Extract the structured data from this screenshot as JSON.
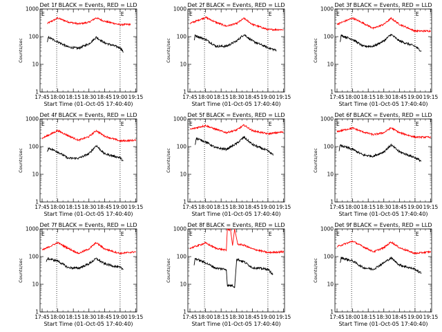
{
  "chart_data": {
    "type": "line",
    "yscale": "log",
    "ylim": [
      1,
      1000
    ],
    "y_ticks": [
      "1",
      "10",
      "100",
      "1000"
    ],
    "x_ticks": [
      "17:45",
      "18:00",
      "18:15",
      "18:30",
      "18:45",
      "19:00",
      "19:15"
    ],
    "xlabel": "Start Time (01-Oct-05 17:40:40)",
    "ylabel": "Counts/sec",
    "marker_label": "E",
    "colors": {
      "events": "#000000",
      "lld": "#ff0000"
    },
    "grid": false,
    "panels": [
      {
        "title": "Det 1f BLACK = Events, RED = LLD",
        "lld": [
          {
            "t": "17:50",
            "v": 300
          },
          {
            "t": "18:00",
            "v": 470
          },
          {
            "t": "18:10",
            "v": 340
          },
          {
            "t": "18:20",
            "v": 290
          },
          {
            "t": "18:30",
            "v": 330
          },
          {
            "t": "18:37",
            "v": 480
          },
          {
            "t": "18:45",
            "v": 360
          },
          {
            "t": "19:00",
            "v": 270
          },
          {
            "t": "19:10",
            "v": 280
          }
        ],
        "events": [
          {
            "t": "17:50",
            "v": 60
          },
          {
            "t": "17:51",
            "v": 95
          },
          {
            "t": "18:00",
            "v": 65
          },
          {
            "t": "18:10",
            "v": 42
          },
          {
            "t": "18:20",
            "v": 38
          },
          {
            "t": "18:30",
            "v": 55
          },
          {
            "t": "18:37",
            "v": 95
          },
          {
            "t": "18:45",
            "v": 60
          },
          {
            "t": "19:00",
            "v": 40
          },
          {
            "t": "19:03",
            "v": 28
          }
        ]
      },
      {
        "title": "Det 2f BLACK = Events, RED = LLD",
        "lld": [
          {
            "t": "17:45",
            "v": 300
          },
          {
            "t": "18:00",
            "v": 500
          },
          {
            "t": "18:10",
            "v": 330
          },
          {
            "t": "18:20",
            "v": 240
          },
          {
            "t": "18:30",
            "v": 300
          },
          {
            "t": "18:37",
            "v": 460
          },
          {
            "t": "18:45",
            "v": 280
          },
          {
            "t": "19:00",
            "v": 180
          },
          {
            "t": "19:15",
            "v": 180
          }
        ],
        "events": [
          {
            "t": "17:49",
            "v": 70
          },
          {
            "t": "17:50",
            "v": 110
          },
          {
            "t": "18:00",
            "v": 80
          },
          {
            "t": "18:10",
            "v": 45
          },
          {
            "t": "18:20",
            "v": 45
          },
          {
            "t": "18:30",
            "v": 70
          },
          {
            "t": "18:37",
            "v": 120
          },
          {
            "t": "18:45",
            "v": 70
          },
          {
            "t": "19:00",
            "v": 40
          },
          {
            "t": "19:08",
            "v": 32
          }
        ]
      },
      {
        "title": "Det 3f BLACK = Events, RED = LLD",
        "lld": [
          {
            "t": "17:45",
            "v": 280
          },
          {
            "t": "18:00",
            "v": 470
          },
          {
            "t": "18:10",
            "v": 310
          },
          {
            "t": "18:20",
            "v": 200
          },
          {
            "t": "18:30",
            "v": 280
          },
          {
            "t": "18:37",
            "v": 460
          },
          {
            "t": "18:45",
            "v": 280
          },
          {
            "t": "19:00",
            "v": 160
          },
          {
            "t": "19:15",
            "v": 160
          }
        ],
        "events": [
          {
            "t": "17:48",
            "v": 70
          },
          {
            "t": "17:49",
            "v": 110
          },
          {
            "t": "18:00",
            "v": 80
          },
          {
            "t": "18:10",
            "v": 45
          },
          {
            "t": "18:20",
            "v": 45
          },
          {
            "t": "18:30",
            "v": 70
          },
          {
            "t": "18:37",
            "v": 120
          },
          {
            "t": "18:45",
            "v": 70
          },
          {
            "t": "19:00",
            "v": 45
          },
          {
            "t": "19:06",
            "v": 30
          }
        ]
      },
      {
        "title": "Det 4f BLACK = Events, RED = LLD",
        "lld": [
          {
            "t": "17:45",
            "v": 200
          },
          {
            "t": "18:00",
            "v": 380
          },
          {
            "t": "18:10",
            "v": 250
          },
          {
            "t": "18:20",
            "v": 170
          },
          {
            "t": "18:30",
            "v": 230
          },
          {
            "t": "18:37",
            "v": 380
          },
          {
            "t": "18:45",
            "v": 240
          },
          {
            "t": "19:00",
            "v": 160
          },
          {
            "t": "19:15",
            "v": 170
          }
        ],
        "events": [
          {
            "t": "17:50",
            "v": 60
          },
          {
            "t": "17:51",
            "v": 90
          },
          {
            "t": "18:00",
            "v": 65
          },
          {
            "t": "18:10",
            "v": 38
          },
          {
            "t": "18:20",
            "v": 38
          },
          {
            "t": "18:30",
            "v": 55
          },
          {
            "t": "18:37",
            "v": 110
          },
          {
            "t": "18:45",
            "v": 55
          },
          {
            "t": "19:00",
            "v": 40
          },
          {
            "t": "19:03",
            "v": 30
          }
        ]
      },
      {
        "title": "Det 5f BLACK = Events, RED = LLD",
        "lld": [
          {
            "t": "17:45",
            "v": 420
          },
          {
            "t": "18:00",
            "v": 580
          },
          {
            "t": "18:10",
            "v": 420
          },
          {
            "t": "18:20",
            "v": 320
          },
          {
            "t": "18:30",
            "v": 400
          },
          {
            "t": "18:37",
            "v": 600
          },
          {
            "t": "18:45",
            "v": 380
          },
          {
            "t": "19:00",
            "v": 290
          },
          {
            "t": "19:15",
            "v": 340
          }
        ],
        "events": [
          {
            "t": "17:50",
            "v": 120
          },
          {
            "t": "17:51",
            "v": 200
          },
          {
            "t": "18:00",
            "v": 150
          },
          {
            "t": "18:10",
            "v": 90
          },
          {
            "t": "18:20",
            "v": 80
          },
          {
            "t": "18:30",
            "v": 130
          },
          {
            "t": "18:37",
            "v": 220
          },
          {
            "t": "18:45",
            "v": 120
          },
          {
            "t": "19:00",
            "v": 70
          },
          {
            "t": "19:05",
            "v": 50
          }
        ]
      },
      {
        "title": "Det 6f BLACK = Events, RED = LLD",
        "lld": [
          {
            "t": "17:45",
            "v": 350
          },
          {
            "t": "18:00",
            "v": 470
          },
          {
            "t": "18:10",
            "v": 340
          },
          {
            "t": "18:20",
            "v": 270
          },
          {
            "t": "18:30",
            "v": 320
          },
          {
            "t": "18:37",
            "v": 480
          },
          {
            "t": "18:45",
            "v": 320
          },
          {
            "t": "19:00",
            "v": 220
          },
          {
            "t": "19:15",
            "v": 220
          }
        ],
        "events": [
          {
            "t": "17:47",
            "v": 75
          },
          {
            "t": "17:48",
            "v": 110
          },
          {
            "t": "18:00",
            "v": 80
          },
          {
            "t": "18:10",
            "v": 50
          },
          {
            "t": "18:20",
            "v": 45
          },
          {
            "t": "18:30",
            "v": 65
          },
          {
            "t": "18:37",
            "v": 115
          },
          {
            "t": "18:45",
            "v": 65
          },
          {
            "t": "19:00",
            "v": 40
          },
          {
            "t": "19:06",
            "v": 30
          }
        ]
      },
      {
        "title": "Det 7f BLACK = Events, RED = LLD",
        "lld": [
          {
            "t": "17:45",
            "v": 170
          },
          {
            "t": "18:00",
            "v": 320
          },
          {
            "t": "18:10",
            "v": 200
          },
          {
            "t": "18:20",
            "v": 130
          },
          {
            "t": "18:30",
            "v": 190
          },
          {
            "t": "18:37",
            "v": 320
          },
          {
            "t": "18:45",
            "v": 190
          },
          {
            "t": "19:00",
            "v": 130
          },
          {
            "t": "19:15",
            "v": 150
          }
        ],
        "events": [
          {
            "t": "17:49",
            "v": 60
          },
          {
            "t": "17:50",
            "v": 85
          },
          {
            "t": "18:00",
            "v": 70
          },
          {
            "t": "18:10",
            "v": 40
          },
          {
            "t": "18:20",
            "v": 38
          },
          {
            "t": "18:30",
            "v": 55
          },
          {
            "t": "18:37",
            "v": 85
          },
          {
            "t": "18:45",
            "v": 55
          },
          {
            "t": "19:00",
            "v": 40
          },
          {
            "t": "19:03",
            "v": 35
          }
        ]
      },
      {
        "title": "Det 8f BLACK = Events, RED = LLD",
        "lld": [
          {
            "t": "17:45",
            "v": 200
          },
          {
            "t": "18:00",
            "v": 310
          },
          {
            "t": "18:10",
            "v": 200
          },
          {
            "t": "18:20",
            "v": 170
          },
          {
            "t": "18:21",
            "v": 1000
          },
          {
            "t": "18:23",
            "v": 900
          },
          {
            "t": "18:24",
            "v": 1000
          },
          {
            "t": "18:26",
            "v": 250
          },
          {
            "t": "18:28",
            "v": 1000
          },
          {
            "t": "18:31",
            "v": 280
          },
          {
            "t": "18:37",
            "v": 260
          },
          {
            "t": "18:45",
            "v": 190
          },
          {
            "t": "19:00",
            "v": 140
          },
          {
            "t": "19:15",
            "v": 150
          }
        ],
        "events": [
          {
            "t": "17:49",
            "v": 50
          },
          {
            "t": "17:50",
            "v": 85
          },
          {
            "t": "18:00",
            "v": 60
          },
          {
            "t": "18:10",
            "v": 38
          },
          {
            "t": "18:20",
            "v": 35
          },
          {
            "t": "18:21",
            "v": 9
          },
          {
            "t": "18:26",
            "v": 9
          },
          {
            "t": "18:28",
            "v": 8
          },
          {
            "t": "18:30",
            "v": 80
          },
          {
            "t": "18:37",
            "v": 65
          },
          {
            "t": "18:45",
            "v": 40
          },
          {
            "t": "19:00",
            "v": 35
          },
          {
            "t": "19:05",
            "v": 22
          }
        ]
      },
      {
        "title": "Det 9f BLACK = Events, RED = LLD",
        "lld": [
          {
            "t": "17:45",
            "v": 230
          },
          {
            "t": "18:00",
            "v": 360
          },
          {
            "t": "18:10",
            "v": 230
          },
          {
            "t": "18:20",
            "v": 150
          },
          {
            "t": "18:30",
            "v": 210
          },
          {
            "t": "18:37",
            "v": 340
          },
          {
            "t": "18:45",
            "v": 210
          },
          {
            "t": "19:00",
            "v": 130
          },
          {
            "t": "19:15",
            "v": 150
          }
        ],
        "events": [
          {
            "t": "17:48",
            "v": 60
          },
          {
            "t": "17:49",
            "v": 90
          },
          {
            "t": "18:00",
            "v": 70
          },
          {
            "t": "18:10",
            "v": 40
          },
          {
            "t": "18:20",
            "v": 35
          },
          {
            "t": "18:30",
            "v": 60
          },
          {
            "t": "18:37",
            "v": 90
          },
          {
            "t": "18:45",
            "v": 50
          },
          {
            "t": "19:00",
            "v": 35
          },
          {
            "t": "19:06",
            "v": 25
          }
        ]
      }
    ]
  }
}
